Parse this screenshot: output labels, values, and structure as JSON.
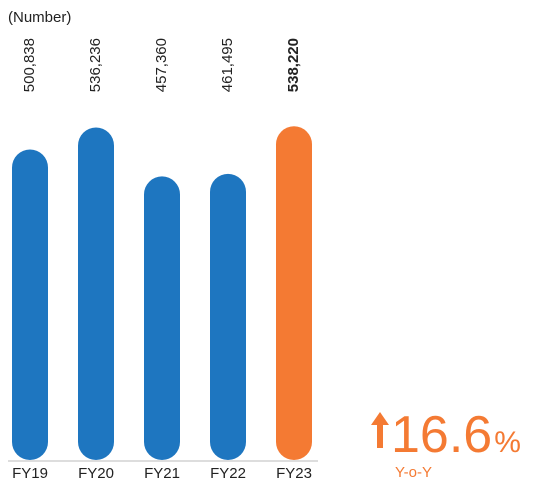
{
  "chart_data": {
    "type": "bar",
    "subtitle": "(Number)",
    "categories": [
      "FY19",
      "FY20",
      "FY21",
      "FY22",
      "FY23"
    ],
    "values": [
      500838,
      536236,
      457360,
      461495,
      538220
    ],
    "value_labels": [
      "500,838",
      "536,236",
      "457,360",
      "461,495",
      "538,220"
    ],
    "colors": [
      "#1e76c0",
      "#1e76c0",
      "#1e76c0",
      "#1e76c0",
      "#f47a33"
    ],
    "highlight": "FY23",
    "ylim": [
      0,
      600000
    ],
    "annotation": {
      "value": 16.6,
      "unit": "%",
      "caption": "Y-o-Y",
      "color": "#f47a33"
    }
  }
}
